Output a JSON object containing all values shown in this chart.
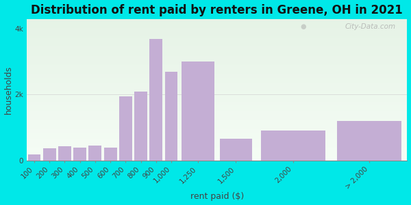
{
  "title": "Distribution of rent paid by renters in Greene, OH in 2021",
  "xlabel": "rent paid ($)",
  "ylabel": "households",
  "bar_color": "#c4aed4",
  "background_outer": "#00e8e8",
  "background_inner": "#e8f5e9",
  "categories": [
    "100",
    "200",
    "300",
    "400",
    "500",
    "600",
    "700",
    "800",
    "900",
    "1,000",
    "1,250",
    "1,500",
    "2,000",
    "> 2,000"
  ],
  "values": [
    180,
    370,
    430,
    390,
    450,
    390,
    1950,
    2100,
    3700,
    2700,
    3000,
    650,
    900,
    1200
  ],
  "ylim": [
    0,
    4300
  ],
  "yticks": [
    0,
    2000,
    4000
  ],
  "ytick_labels": [
    "0",
    "2k",
    "4k"
  ],
  "title_fontsize": 12,
  "axis_fontsize": 9,
  "tick_fontsize": 7.5,
  "watermark_text": "City-Data.com"
}
